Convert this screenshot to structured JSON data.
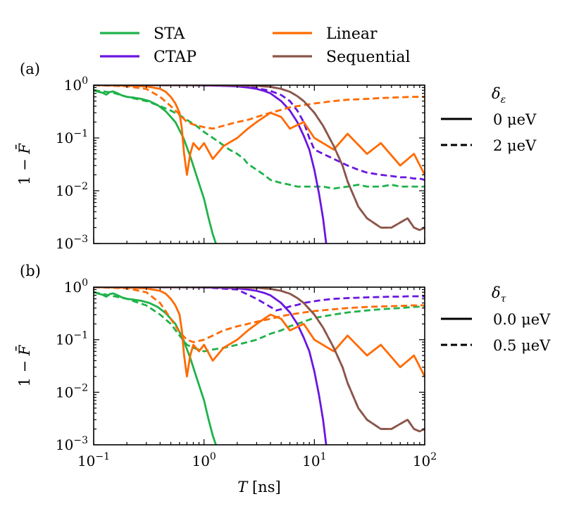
{
  "figure": {
    "legend_title_a": "δ",
    "legend_sub_a": "ε",
    "legend_title_b": "δ",
    "legend_sub_b": "τ",
    "solid_label_a": "0 μeV",
    "dashed_label_a": "2 μeV",
    "solid_label_b": "0.0 μeV",
    "dashed_label_b": "0.5 μeV"
  },
  "chart_data": [
    {
      "type": "line",
      "panel_label": "(a)",
      "xscale": "log",
      "yscale": "log",
      "xlim": [
        0.1,
        100
      ],
      "ylim": [
        0.001,
        1
      ],
      "xlabel": "T [ns]",
      "ylabel": "1 − F̄",
      "x_ticks": [
        "10^-1",
        "10^0",
        "10^1",
        "10^2"
      ],
      "y_ticks": [
        "10^-3",
        "10^-2",
        "10^-1",
        "10^0"
      ],
      "legend": {
        "placement": "top",
        "entries": [
          {
            "name": "STA",
            "color": "#1fb24a"
          },
          {
            "name": "CTAP",
            "color": "#6a16e0"
          },
          {
            "name": "Linear",
            "color": "#ff6a00"
          },
          {
            "name": "Sequential",
            "color": "#8c564b"
          }
        ]
      },
      "linestyle_legend": {
        "title": "δε",
        "solid": "0 μeV",
        "dashed": "2 μeV"
      },
      "series": [
        {
          "name": "STA",
          "color": "#1fb24a",
          "style": "solid",
          "x": [
            0.1,
            0.11,
            0.12,
            0.13,
            0.14,
            0.15,
            0.16,
            0.17,
            0.18,
            0.2,
            0.23,
            0.27,
            0.32,
            0.38,
            0.45,
            0.55,
            0.65,
            0.75,
            0.85,
            1.0,
            1.1,
            1.2,
            1.28
          ],
          "y": [
            0.8,
            0.75,
            0.72,
            0.66,
            0.74,
            0.76,
            0.72,
            0.68,
            0.64,
            0.6,
            0.58,
            0.55,
            0.5,
            0.42,
            0.32,
            0.2,
            0.1,
            0.045,
            0.02,
            0.007,
            0.003,
            0.0015,
            0.001
          ]
        },
        {
          "name": "STA",
          "color": "#1fb24a",
          "style": "dashed",
          "x": [
            0.1,
            0.15,
            0.2,
            0.3,
            0.4,
            0.5,
            0.6,
            0.7,
            0.85,
            1.0,
            1.3,
            1.7,
            2.0,
            2.3,
            2.5,
            3,
            3.5,
            4,
            5,
            6,
            7,
            8,
            10,
            12,
            15,
            20,
            25,
            30,
            40,
            50,
            60,
            70,
            80,
            90,
            100
          ],
          "y": [
            0.8,
            0.72,
            0.6,
            0.5,
            0.4,
            0.33,
            0.27,
            0.22,
            0.17,
            0.13,
            0.09,
            0.06,
            0.05,
            0.04,
            0.032,
            0.025,
            0.02,
            0.016,
            0.014,
            0.013,
            0.012,
            0.012,
            0.012,
            0.012,
            0.011,
            0.012,
            0.013,
            0.012,
            0.012,
            0.013,
            0.012,
            0.012,
            0.012,
            0.012,
            0.012
          ]
        },
        {
          "name": "CTAP",
          "color": "#6a16e0",
          "style": "solid",
          "x": [
            0.1,
            0.3,
            0.6,
            1.0,
            1.5,
            2.0,
            2.5,
            3.0,
            3.5,
            4.0,
            5.0,
            6.0,
            7.0,
            8.0,
            9.0,
            10,
            11,
            12,
            12.8
          ],
          "y": [
            1,
            1,
            1,
            0.99,
            0.97,
            0.95,
            0.9,
            0.85,
            0.78,
            0.7,
            0.5,
            0.33,
            0.2,
            0.11,
            0.06,
            0.025,
            0.009,
            0.003,
            0.001
          ]
        },
        {
          "name": "CTAP",
          "color": "#6a16e0",
          "style": "dashed",
          "x": [
            0.1,
            1.0,
            2.0,
            3.0,
            4.0,
            5.0,
            6.0,
            7.0,
            8.0,
            9.0,
            10,
            12,
            15,
            20,
            25,
            30,
            40,
            50,
            60,
            70,
            80,
            90,
            100
          ],
          "y": [
            1,
            0.99,
            0.96,
            0.88,
            0.78,
            0.65,
            0.5,
            0.33,
            0.2,
            0.1,
            0.06,
            0.05,
            0.04,
            0.03,
            0.025,
            0.022,
            0.02,
            0.019,
            0.018,
            0.018,
            0.017,
            0.017,
            0.016
          ]
        },
        {
          "name": "Linear",
          "color": "#ff6a00",
          "style": "solid",
          "x": [
            0.1,
            0.2,
            0.3,
            0.4,
            0.45,
            0.5,
            0.55,
            0.6,
            0.63,
            0.66,
            0.7,
            0.75,
            0.8,
            0.9,
            1.0,
            1.2,
            1.5,
            2.0,
            2.5,
            3,
            4,
            5,
            6,
            8,
            10,
            15,
            20,
            30,
            40,
            60,
            80,
            100
          ],
          "y": [
            1,
            0.98,
            0.95,
            0.85,
            0.75,
            0.6,
            0.45,
            0.3,
            0.15,
            0.05,
            0.02,
            0.05,
            0.08,
            0.06,
            0.08,
            0.04,
            0.07,
            0.1,
            0.15,
            0.2,
            0.3,
            0.25,
            0.15,
            0.2,
            0.1,
            0.06,
            0.12,
            0.05,
            0.08,
            0.03,
            0.05,
            0.02
          ]
        },
        {
          "name": "Linear",
          "color": "#ff6a00",
          "style": "dashed",
          "x": [
            0.1,
            0.2,
            0.3,
            0.4,
            0.5,
            0.6,
            0.7,
            0.8,
            1.0,
            1.2,
            1.5,
            2,
            2.5,
            3,
            4,
            5,
            6,
            8,
            10,
            15,
            20,
            30,
            40,
            60,
            80,
            100
          ],
          "y": [
            1,
            0.95,
            0.85,
            0.6,
            0.4,
            0.28,
            0.2,
            0.18,
            0.16,
            0.15,
            0.17,
            0.2,
            0.22,
            0.25,
            0.3,
            0.34,
            0.38,
            0.42,
            0.45,
            0.5,
            0.53,
            0.55,
            0.57,
            0.59,
            0.6,
            0.6
          ]
        },
        {
          "name": "Sequential",
          "color": "#8c564b",
          "style": "solid",
          "x": [
            0.1,
            0.5,
            1,
            2,
            3,
            4,
            5,
            6,
            7,
            8,
            10,
            12,
            15,
            18,
            20,
            25,
            30,
            40,
            50,
            60,
            70,
            80,
            90,
            100
          ],
          "y": [
            1,
            1,
            1,
            0.99,
            0.97,
            0.93,
            0.85,
            0.75,
            0.62,
            0.5,
            0.3,
            0.17,
            0.07,
            0.03,
            0.015,
            0.005,
            0.003,
            0.002,
            0.002,
            0.0025,
            0.003,
            0.002,
            0.0018,
            0.002
          ]
        },
        {
          "name": "Sequential",
          "color": "#8c564b",
          "style": "dashed",
          "x": [
            0.1,
            0.5,
            1,
            2,
            3,
            4,
            5,
            6,
            7,
            8,
            10,
            12,
            15,
            18,
            20,
            25,
            30,
            40,
            50,
            60,
            70,
            80,
            90,
            100
          ],
          "y": [
            1,
            1,
            1,
            0.99,
            0.97,
            0.93,
            0.85,
            0.75,
            0.62,
            0.5,
            0.3,
            0.17,
            0.07,
            0.03,
            0.015,
            0.005,
            0.003,
            0.002,
            0.002,
            0.0025,
            0.003,
            0.002,
            0.0018,
            0.002
          ]
        }
      ]
    },
    {
      "type": "line",
      "panel_label": "(b)",
      "xscale": "log",
      "yscale": "log",
      "xlim": [
        0.1,
        100
      ],
      "ylim": [
        0.001,
        1
      ],
      "xlabel": "T [ns]",
      "ylabel": "1 − F̄",
      "x_ticks": [
        "10^-1",
        "10^0",
        "10^1",
        "10^2"
      ],
      "y_ticks": [
        "10^-3",
        "10^-2",
        "10^-1",
        "10^0"
      ],
      "linestyle_legend": {
        "title": "δτ",
        "solid": "0.0 μeV",
        "dashed": "0.5 μeV"
      },
      "series": [
        {
          "name": "STA",
          "color": "#1fb24a",
          "style": "solid",
          "x": [
            0.1,
            0.11,
            0.12,
            0.13,
            0.14,
            0.15,
            0.16,
            0.17,
            0.18,
            0.2,
            0.23,
            0.27,
            0.32,
            0.38,
            0.45,
            0.55,
            0.65,
            0.75,
            0.85,
            1.0,
            1.1,
            1.2,
            1.28
          ],
          "y": [
            0.8,
            0.75,
            0.72,
            0.66,
            0.74,
            0.76,
            0.72,
            0.68,
            0.64,
            0.6,
            0.58,
            0.55,
            0.5,
            0.42,
            0.32,
            0.2,
            0.1,
            0.045,
            0.02,
            0.007,
            0.003,
            0.0015,
            0.001
          ]
        },
        {
          "name": "STA",
          "color": "#1fb24a",
          "style": "dashed",
          "x": [
            0.1,
            0.2,
            0.3,
            0.4,
            0.5,
            0.6,
            0.7,
            0.8,
            1.0,
            1.2,
            1.5,
            2,
            3,
            4,
            5,
            6,
            8,
            10,
            15,
            20,
            30,
            40,
            60,
            80,
            100
          ],
          "y": [
            0.8,
            0.6,
            0.45,
            0.3,
            0.2,
            0.12,
            0.08,
            0.07,
            0.06,
            0.065,
            0.07,
            0.08,
            0.1,
            0.13,
            0.15,
            0.18,
            0.22,
            0.26,
            0.3,
            0.33,
            0.36,
            0.38,
            0.4,
            0.42,
            0.43
          ]
        },
        {
          "name": "CTAP",
          "color": "#6a16e0",
          "style": "solid",
          "x": [
            0.1,
            0.3,
            0.6,
            1.0,
            1.5,
            2.0,
            2.5,
            3.0,
            3.5,
            4.0,
            5.0,
            6.0,
            7.0,
            8.0,
            9.0,
            10,
            11,
            12,
            12.8
          ],
          "y": [
            1,
            1,
            1,
            0.99,
            0.97,
            0.95,
            0.9,
            0.85,
            0.78,
            0.7,
            0.5,
            0.33,
            0.2,
            0.11,
            0.06,
            0.025,
            0.009,
            0.003,
            0.001
          ]
        },
        {
          "name": "CTAP",
          "color": "#6a16e0",
          "style": "dashed",
          "x": [
            0.1,
            1.0,
            2.0,
            3.0,
            4.0,
            4.5,
            5.0,
            6.0,
            7.0,
            8.0,
            10,
            12,
            15,
            20,
            25,
            30,
            40,
            50,
            60,
            70,
            80,
            90,
            100
          ],
          "y": [
            1,
            0.99,
            0.9,
            0.6,
            0.42,
            0.36,
            0.38,
            0.43,
            0.46,
            0.5,
            0.54,
            0.57,
            0.6,
            0.62,
            0.63,
            0.64,
            0.65,
            0.66,
            0.66,
            0.67,
            0.67,
            0.67,
            0.66
          ]
        },
        {
          "name": "Linear",
          "color": "#ff6a00",
          "style": "solid",
          "x": [
            0.1,
            0.2,
            0.3,
            0.4,
            0.45,
            0.5,
            0.55,
            0.6,
            0.63,
            0.66,
            0.7,
            0.75,
            0.8,
            0.9,
            1.0,
            1.2,
            1.5,
            2.0,
            2.5,
            3,
            4,
            5,
            6,
            8,
            10,
            15,
            20,
            30,
            40,
            60,
            80,
            100
          ],
          "y": [
            1,
            0.98,
            0.95,
            0.85,
            0.75,
            0.6,
            0.45,
            0.3,
            0.15,
            0.05,
            0.02,
            0.05,
            0.08,
            0.06,
            0.08,
            0.04,
            0.07,
            0.1,
            0.15,
            0.2,
            0.3,
            0.25,
            0.15,
            0.2,
            0.1,
            0.06,
            0.12,
            0.05,
            0.08,
            0.03,
            0.05,
            0.02
          ]
        },
        {
          "name": "Linear",
          "color": "#ff6a00",
          "style": "dashed",
          "x": [
            0.1,
            0.2,
            0.3,
            0.4,
            0.5,
            0.6,
            0.7,
            0.8,
            1.0,
            1.2,
            1.5,
            2,
            2.5,
            3,
            4,
            5,
            6,
            8,
            10,
            15,
            20,
            30,
            40,
            60,
            80,
            100
          ],
          "y": [
            1,
            0.95,
            0.8,
            0.5,
            0.25,
            0.14,
            0.1,
            0.09,
            0.1,
            0.12,
            0.15,
            0.18,
            0.2,
            0.22,
            0.25,
            0.28,
            0.3,
            0.33,
            0.35,
            0.38,
            0.4,
            0.42,
            0.43,
            0.44,
            0.45,
            0.45
          ]
        },
        {
          "name": "Sequential",
          "color": "#8c564b",
          "style": "solid",
          "x": [
            0.1,
            0.5,
            1,
            2,
            3,
            4,
            5,
            6,
            7,
            8,
            10,
            12,
            15,
            18,
            20,
            25,
            30,
            40,
            50,
            60,
            70,
            80,
            90,
            100
          ],
          "y": [
            1,
            1,
            1,
            0.99,
            0.97,
            0.93,
            0.85,
            0.75,
            0.62,
            0.5,
            0.3,
            0.17,
            0.07,
            0.03,
            0.015,
            0.005,
            0.003,
            0.002,
            0.002,
            0.0025,
            0.003,
            0.002,
            0.0018,
            0.002
          ]
        },
        {
          "name": "Sequential",
          "color": "#8c564b",
          "style": "dashed",
          "x": [
            0.1,
            0.5,
            1,
            2,
            3,
            4,
            5,
            6,
            7,
            8,
            10,
            12,
            15,
            18,
            20,
            25,
            30,
            40,
            50,
            60,
            70,
            80,
            90,
            100
          ],
          "y": [
            1,
            1,
            1,
            0.99,
            0.97,
            0.93,
            0.85,
            0.75,
            0.62,
            0.5,
            0.3,
            0.17,
            0.07,
            0.03,
            0.015,
            0.005,
            0.003,
            0.002,
            0.002,
            0.0025,
            0.003,
            0.002,
            0.0018,
            0.002
          ]
        }
      ]
    }
  ]
}
